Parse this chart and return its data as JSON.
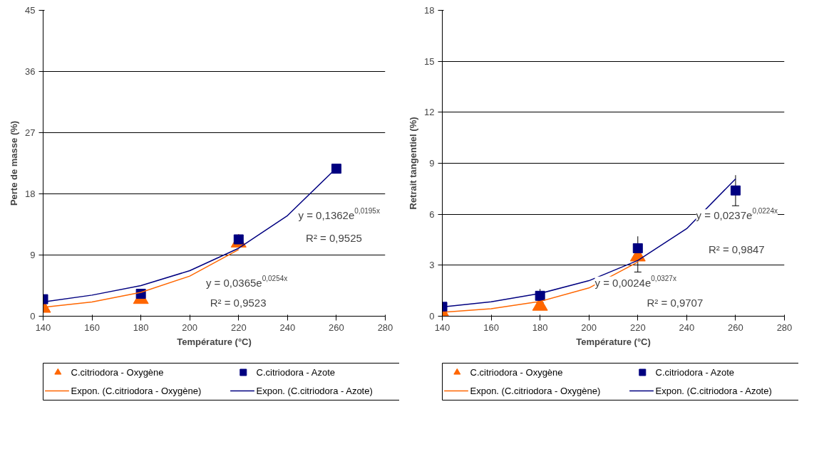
{
  "chart_data": [
    {
      "type": "scatter",
      "xlabel": "Température (°C)",
      "ylabel": "Perte de masse (%)",
      "xlim": [
        140,
        280
      ],
      "xticks": [
        140,
        160,
        180,
        200,
        220,
        240,
        260,
        280
      ],
      "ylim": [
        0,
        45
      ],
      "yticks": [
        0,
        9,
        18,
        27,
        36,
        45
      ],
      "grid": "y",
      "legend": "bottom",
      "series": [
        {
          "name": "C.citriodora - Oxygène",
          "type": "scatter",
          "marker": "triangle",
          "color": "#ff6600",
          "x": [
            140,
            180,
            220
          ],
          "values": [
            1.2,
            2.5,
            10.8
          ]
        },
        {
          "name": "C.citriodora - Azote",
          "type": "scatter",
          "marker": "square",
          "color": "#000080",
          "x": [
            140,
            180,
            220,
            260
          ],
          "values": [
            2.5,
            3.3,
            11.3,
            21.7
          ]
        },
        {
          "name": "Expon. (C.citriodora - Oxygène)",
          "type": "line",
          "marker": "none",
          "color": "#ff6600",
          "x": [
            140,
            160,
            180,
            200,
            220
          ],
          "values": [
            1.3,
            2.1,
            3.5,
            5.9,
            9.8
          ]
        },
        {
          "name": "Expon. (C.citriodora - Azote)",
          "type": "line",
          "marker": "none",
          "color": "#000080",
          "x": [
            140,
            160,
            180,
            200,
            220,
            240,
            260
          ],
          "values": [
            2.1,
            3.1,
            4.5,
            6.7,
            10.0,
            14.8,
            21.8
          ]
        }
      ],
      "annotations": [
        "y = 0,1362e$^{0,0195x}$",
        "R² = 0,9525",
        "y = 0,0365e$^{0,0254x}$",
        "R² = 0,9523"
      ]
    },
    {
      "type": "scatter",
      "xlabel": "Température (°C)",
      "ylabel": "Retrait tangentiel (%)",
      "xlim": [
        140,
        280
      ],
      "xticks": [
        140,
        160,
        180,
        200,
        220,
        240,
        260,
        280
      ],
      "ylim": [
        0,
        18
      ],
      "yticks": [
        0,
        3,
        6,
        9,
        12,
        15,
        18
      ],
      "grid": "y",
      "legend": "bottom",
      "series": [
        {
          "name": "C.citriodora - Oxygène",
          "type": "scatter",
          "marker": "triangle",
          "color": "#ff6600",
          "x": [
            140,
            180,
            220
          ],
          "values": [
            0.15,
            0.6,
            3.5
          ]
        },
        {
          "name": "C.citriodora - Azote",
          "type": "scatter",
          "marker": "square",
          "color": "#000080",
          "x": [
            140,
            180,
            220,
            260
          ],
          "values": [
            0.55,
            1.2,
            4.0,
            7.4
          ],
          "errors": [
            null,
            [
              0.8,
              1.6
            ],
            [
              2.6,
              4.7
            ],
            [
              6.5,
              8.3
            ]
          ]
        },
        {
          "name": "Expon. (C.citriodora - Oxygène)",
          "type": "line",
          "marker": "none",
          "color": "#ff6600",
          "x": [
            140,
            160,
            180,
            200,
            220
          ],
          "values": [
            0.23,
            0.44,
            0.87,
            1.66,
            3.19
          ]
        },
        {
          "name": "Expon. (C.citriodora - Azote)",
          "type": "line",
          "marker": "none",
          "color": "#000080",
          "x": [
            140,
            160,
            180,
            200,
            220,
            240,
            260
          ],
          "values": [
            0.54,
            0.85,
            1.34,
            2.09,
            3.28,
            5.15,
            8.08
          ]
        }
      ],
      "annotations": [
        "y = 0,0237e$^{0,0224x}$",
        "R² = 0,9847",
        "y = 0,0024e$^{0,0327x}$",
        "R² = 0,9707"
      ]
    }
  ]
}
